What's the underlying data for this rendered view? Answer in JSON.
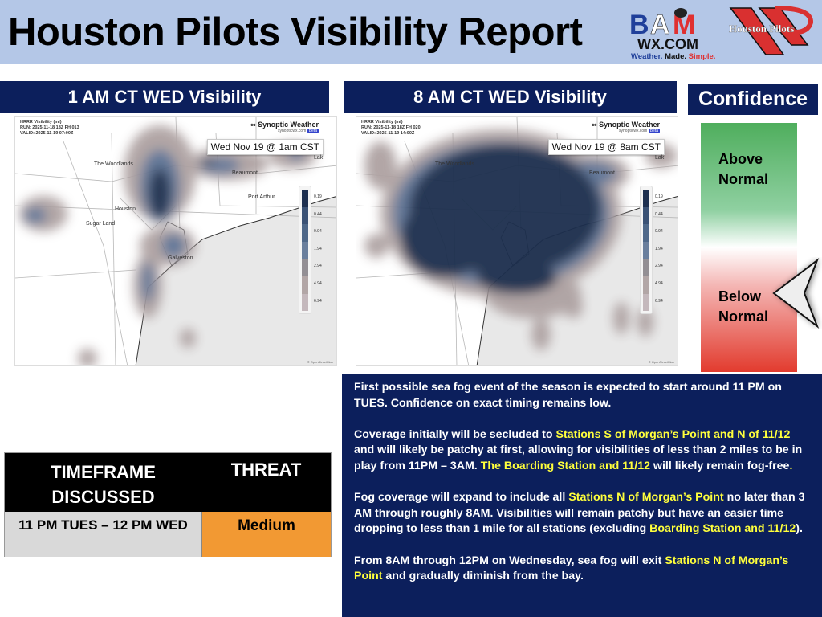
{
  "header": {
    "title": "Houston Pilots Visibility Report",
    "logo_bam": {
      "line1": "BAM",
      "line2": "WX.COM",
      "tagline": [
        "Weather.",
        "Made.",
        "Simple."
      ]
    },
    "logo_hp": "Houston Pilots"
  },
  "colors": {
    "navy": "#0c1f5c",
    "header_bg": "#b4c7e7",
    "highlight": "#ffff3c",
    "threat_medium": "#f29933",
    "fog_dense": "#1e3050",
    "fog_light": "#a89c9c"
  },
  "panels": [
    {
      "title": "1 AM CT WED Visibility",
      "info": [
        "HRRR Visibility (mi)",
        "RUN: 2025-11-18 18Z FH 013",
        "VALID: 2025-11-19 07:00Z"
      ],
      "stamp": "Wed Nov 19 @ 1am CST"
    },
    {
      "title": "8 AM CT WED Visibility",
      "info": [
        "HRRR Visibility (mi)",
        "RUN: 2025-11-18 18Z FH 020",
        "VALID: 2025-11-19 14:00Z"
      ],
      "stamp": "Wed Nov 19 @ 8am CST"
    }
  ],
  "map": {
    "brand": "Synoptic Weather",
    "site": "synopticwx.com",
    "beta": "Beta",
    "attribution": "© OpenStreetMap",
    "places": [
      "The Woodlands",
      "Houston",
      "Sugar Land",
      "Beaumont",
      "Port Arthur",
      "Galveston",
      "Lak"
    ],
    "legend_ticks": [
      "0.19",
      "0.44",
      "0.94",
      "1.94",
      "2.94",
      "4.94",
      "6.94"
    ]
  },
  "confidence": {
    "title": "Confidence",
    "above": [
      "Above",
      "Normal"
    ],
    "below": [
      "Below",
      "Normal"
    ],
    "selected": "Below Normal"
  },
  "discussion": [
    [
      {
        "t": "First possible sea fog event of the season is expected to start around 11 PM on TUES. Confidence on exact timing remains low."
      }
    ],
    [
      {
        "t": "Coverage initially will be secluded to "
      },
      {
        "t": "Stations S of Morgan’s Point and N of 11/12",
        "h": true
      },
      {
        "t": " and will likely be patchy at first, allowing for visibilities of less than 2 miles to be in play from 11PM – 3AM. "
      },
      {
        "t": "The Boarding Station and 11/12",
        "h": true
      },
      {
        "t": " will likely remain fog-free"
      },
      {
        "t": ".",
        "h": true
      }
    ],
    [
      {
        "t": "Fog coverage will expand to include all "
      },
      {
        "t": "Stations N of Morgan’s Point",
        "h": true
      },
      {
        "t": " no later than 3 AM through roughly 8AM. Visibilities will remain patchy but have an easier time dropping to less than 1 mile for all stations (excluding "
      },
      {
        "t": "Boarding Station and 11/12",
        "h": true
      },
      {
        "t": ")."
      }
    ],
    [
      {
        "t": "From 8AM through 12PM on Wednesday, sea fog will exit "
      },
      {
        "t": "Stations N of Morgan’s Point",
        "h": true
      },
      {
        "t": " and gradually diminish from the bay."
      }
    ]
  ],
  "table": {
    "headers": [
      "TIMEFRAME DISCUSSED",
      "THREAT"
    ],
    "row": {
      "timeframe": "11 PM TUES – 12 PM WED",
      "threat": "Medium"
    }
  }
}
